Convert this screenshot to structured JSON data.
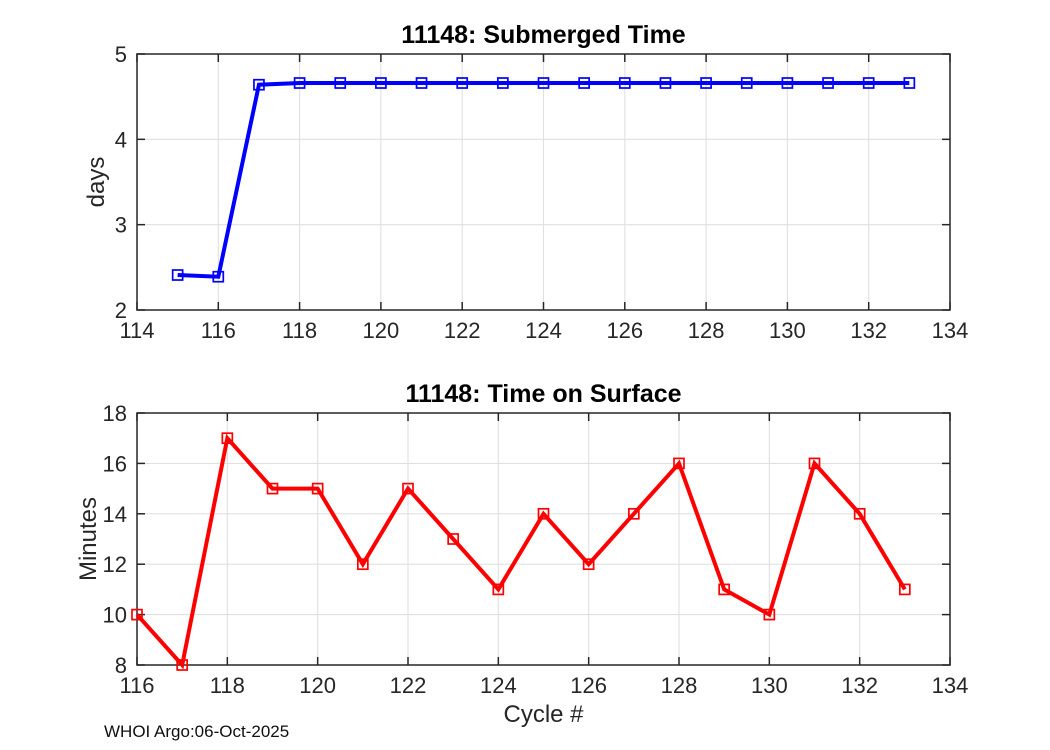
{
  "figure": {
    "footer_text": "WHOI Argo:06-Oct-2025",
    "colors": {
      "background": "#ffffff",
      "axis": "#262626",
      "grid": "#e0e0e0",
      "tick_label": "#262626",
      "title": "#000000",
      "blue_series": "#0000ff",
      "red_series": "#ff0000"
    }
  },
  "chart_data": [
    {
      "id": "submerged-time",
      "type": "line",
      "title": "11148: Submerged Time",
      "xlabel": "",
      "ylabel": "days",
      "xlim": [
        114,
        134
      ],
      "ylim": [
        2,
        5
      ],
      "xticks": [
        114,
        116,
        118,
        120,
        122,
        124,
        126,
        128,
        130,
        132,
        134
      ],
      "yticks": [
        2,
        3,
        4,
        5
      ],
      "grid": true,
      "legend": null,
      "series": [
        {
          "name": "submerged-days",
          "color": "#0000ff",
          "marker": "square",
          "x": [
            115,
            116,
            117,
            118,
            119,
            120,
            121,
            122,
            123,
            124,
            125,
            126,
            127,
            128,
            129,
            130,
            131,
            132,
            133
          ],
          "values": [
            2.41,
            2.39,
            4.64,
            4.66,
            4.66,
            4.66,
            4.66,
            4.66,
            4.66,
            4.66,
            4.66,
            4.66,
            4.66,
            4.66,
            4.66,
            4.66,
            4.66,
            4.66,
            4.66
          ]
        }
      ]
    },
    {
      "id": "time-on-surface",
      "type": "line",
      "title": "11148: Time on Surface",
      "xlabel": "Cycle #",
      "ylabel": "Minutes",
      "xlim": [
        116,
        134
      ],
      "ylim": [
        8,
        18
      ],
      "xticks": [
        116,
        118,
        120,
        122,
        124,
        126,
        128,
        130,
        132,
        134
      ],
      "yticks": [
        8,
        10,
        12,
        14,
        16,
        18
      ],
      "grid": true,
      "legend": null,
      "series": [
        {
          "name": "surface-minutes",
          "color": "#ff0000",
          "marker": "square",
          "x": [
            116,
            117,
            118,
            119,
            120,
            121,
            122,
            123,
            124,
            125,
            126,
            127,
            128,
            129,
            130,
            131,
            132,
            133
          ],
          "values": [
            10,
            8,
            17,
            15,
            15,
            12,
            15,
            13,
            11,
            14,
            12,
            14,
            16,
            11,
            10,
            16,
            14,
            11
          ]
        }
      ]
    }
  ]
}
